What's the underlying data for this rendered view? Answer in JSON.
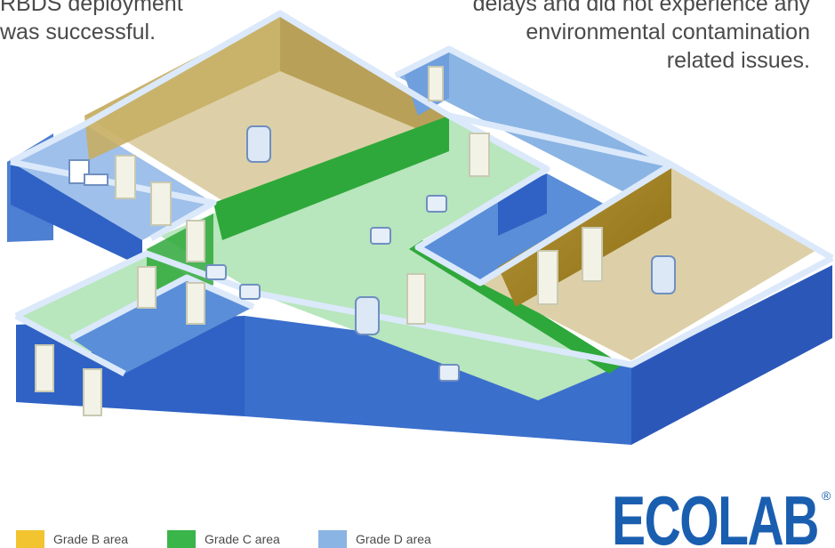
{
  "caption_left": [
    "RBDS deployment",
    "was successful."
  ],
  "caption_right": [
    "delays and did not experience any",
    "environmental contamination",
    "related issues."
  ],
  "legend": [
    {
      "label": "Grade B area",
      "color": "#f2c530"
    },
    {
      "label": "Grade C area",
      "color": "#3ab54a"
    },
    {
      "label": "Grade D area",
      "color": "#8ab4e3"
    }
  ],
  "logo": {
    "text": "ECOLAB",
    "mark": "®",
    "color": "#1a5eb0"
  },
  "colors": {
    "grade_b_floor": "#ddd0a8",
    "grade_b_wall": "#c7ae63",
    "grade_c_floor": "#b8e6bd",
    "grade_c_wall": "#2ea83a",
    "grade_d_floor": "#5a8ed8",
    "grade_d_wall": "#2f62c4",
    "wall_top": "#dbe9fb"
  },
  "icons": [
    "sampler-drum-icon",
    "sampler-box-icon",
    "desk-chair-icon"
  ]
}
